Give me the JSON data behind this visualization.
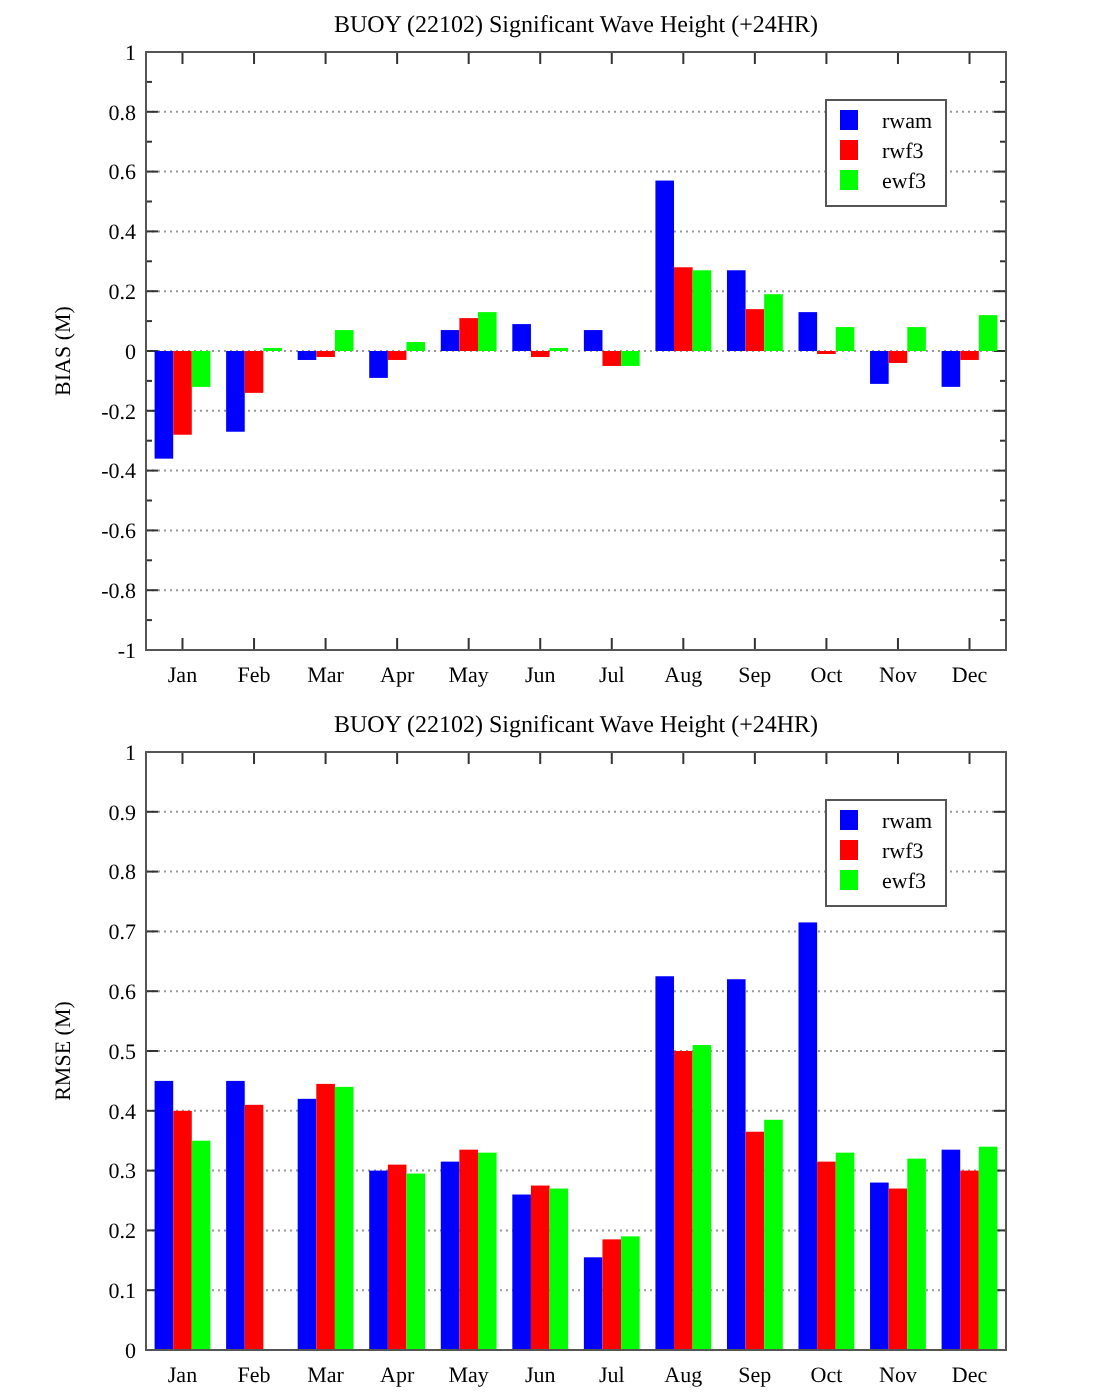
{
  "chart_data": [
    {
      "type": "bar",
      "title": "BUOY (22102) Significant Wave Height (+24HR)",
      "ylabel": "BIAS (M)",
      "categories": [
        "Jan",
        "Feb",
        "Mar",
        "Apr",
        "May",
        "Jun",
        "Jul",
        "Aug",
        "Sep",
        "Oct",
        "Nov",
        "Dec"
      ],
      "series": [
        {
          "name": "rwam",
          "color": "#0000ff",
          "values": [
            -0.36,
            -0.27,
            -0.03,
            -0.09,
            0.07,
            0.09,
            0.07,
            0.57,
            0.27,
            0.13,
            -0.11,
            -0.12
          ]
        },
        {
          "name": "rwf3",
          "color": "#ff0000",
          "values": [
            -0.28,
            -0.14,
            -0.02,
            -0.03,
            0.11,
            -0.02,
            -0.05,
            0.28,
            0.14,
            -0.01,
            -0.04,
            -0.03
          ]
        },
        {
          "name": "ewf3",
          "color": "#00ff00",
          "values": [
            -0.12,
            0.01,
            0.07,
            0.03,
            0.13,
            0.01,
            -0.05,
            0.27,
            0.19,
            0.08,
            0.08,
            0.12
          ]
        }
      ],
      "ylim": [
        -1,
        1
      ],
      "yticks": [
        -1,
        {
          "value": -0.9,
          "label": null
        },
        -0.8,
        {
          "value": -0.7,
          "label": null
        },
        -0.6,
        {
          "value": -0.5,
          "label": null
        },
        -0.4,
        {
          "value": -0.3,
          "label": null
        },
        -0.2,
        {
          "value": -0.1,
          "label": null
        },
        0,
        {
          "value": 0.1,
          "label": null
        },
        0.2,
        {
          "value": 0.3,
          "label": null
        },
        0.4,
        {
          "value": 0.5,
          "label": null
        },
        0.6,
        {
          "value": 0.7,
          "label": null
        },
        0.8,
        {
          "value": 0.9,
          "label": null
        },
        1
      ],
      "grid": "y",
      "legend": "top right"
    },
    {
      "type": "bar",
      "title": "BUOY (22102) Significant Wave Height (+24HR)",
      "ylabel": "RMSE (M)",
      "categories": [
        "Jan",
        "Feb",
        "Mar",
        "Apr",
        "May",
        "Jun",
        "Jul",
        "Aug",
        "Sep",
        "Oct",
        "Nov",
        "Dec"
      ],
      "series": [
        {
          "name": "rwam",
          "color": "#0000ff",
          "values": [
            0.45,
            0.45,
            0.42,
            0.3,
            0.315,
            0.26,
            0.155,
            0.625,
            0.62,
            0.715,
            0.28,
            0.335
          ]
        },
        {
          "name": "rwf3",
          "color": "#ff0000",
          "values": [
            0.4,
            0.41,
            0.445,
            0.31,
            0.335,
            0.275,
            0.185,
            0.5,
            0.365,
            0.315,
            0.27,
            0.3
          ]
        },
        {
          "name": "ewf3",
          "color": "#00ff00",
          "values": [
            0.35,
            null,
            0.44,
            0.295,
            0.33,
            0.27,
            0.19,
            0.51,
            0.385,
            0.33,
            0.32,
            0.34
          ]
        }
      ],
      "ylim": [
        0,
        1
      ],
      "yticks": [
        0,
        0.1,
        0.2,
        0.3,
        0.4,
        0.5,
        0.6,
        0.7,
        0.8,
        0.9,
        1
      ],
      "grid": "y",
      "legend": "top right"
    }
  ]
}
